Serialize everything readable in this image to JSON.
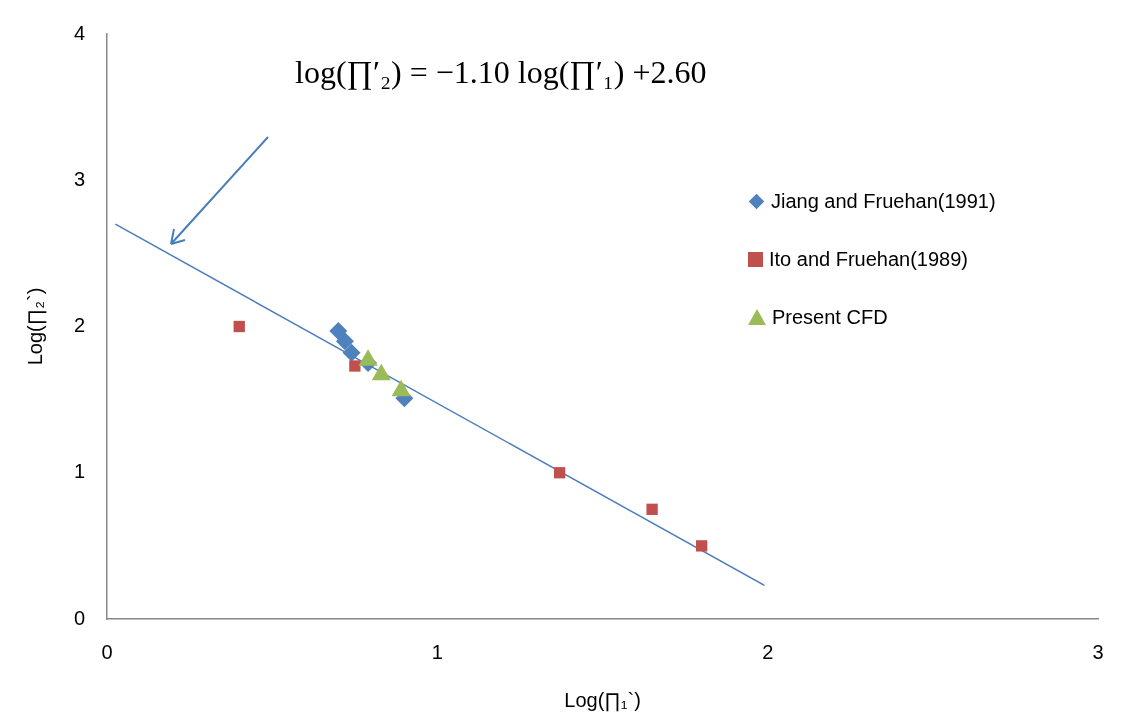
{
  "chart_data": {
    "type": "scatter",
    "xlabel": "Log(∏₁`)",
    "ylabel": "Log(∏₂`)",
    "annotations": [
      "log(∏′₂) = −1.10 log(∏′₁) +2.60"
    ],
    "xlim": [
      0,
      3
    ],
    "xticks": [
      0,
      1,
      2,
      3
    ],
    "ylim": [
      0,
      4
    ],
    "yticks": [
      0,
      1,
      2,
      3,
      4
    ],
    "grid": false,
    "legend": "right",
    "series": [
      {
        "name": "Jiang and Fruehan(1991)",
        "color": "#4f81bd",
        "marker": "diamond",
        "x": [
          0.7,
          0.72,
          0.74,
          0.79,
          0.9
        ],
        "values": [
          1.97,
          1.9,
          1.82,
          1.75,
          1.51
        ]
      },
      {
        "name": "Ito and Fruehan(1989)",
        "color": "#c0504d",
        "marker": "square",
        "x": [
          0.4,
          0.75,
          1.37,
          1.65,
          1.8
        ],
        "values": [
          2.0,
          1.73,
          1.0,
          0.75,
          0.5
        ]
      },
      {
        "name": "Present CFD",
        "color": "#9bbb59",
        "marker": "triangle",
        "x": [
          0.79,
          0.83,
          0.89
        ],
        "values": [
          1.77,
          1.67,
          1.56
        ]
      },
      {
        "type": "line",
        "color": "#4a7ebb",
        "marker": "none",
        "x": [
          0.025,
          1.99
        ],
        "values": [
          2.7,
          0.23
        ]
      }
    ]
  }
}
